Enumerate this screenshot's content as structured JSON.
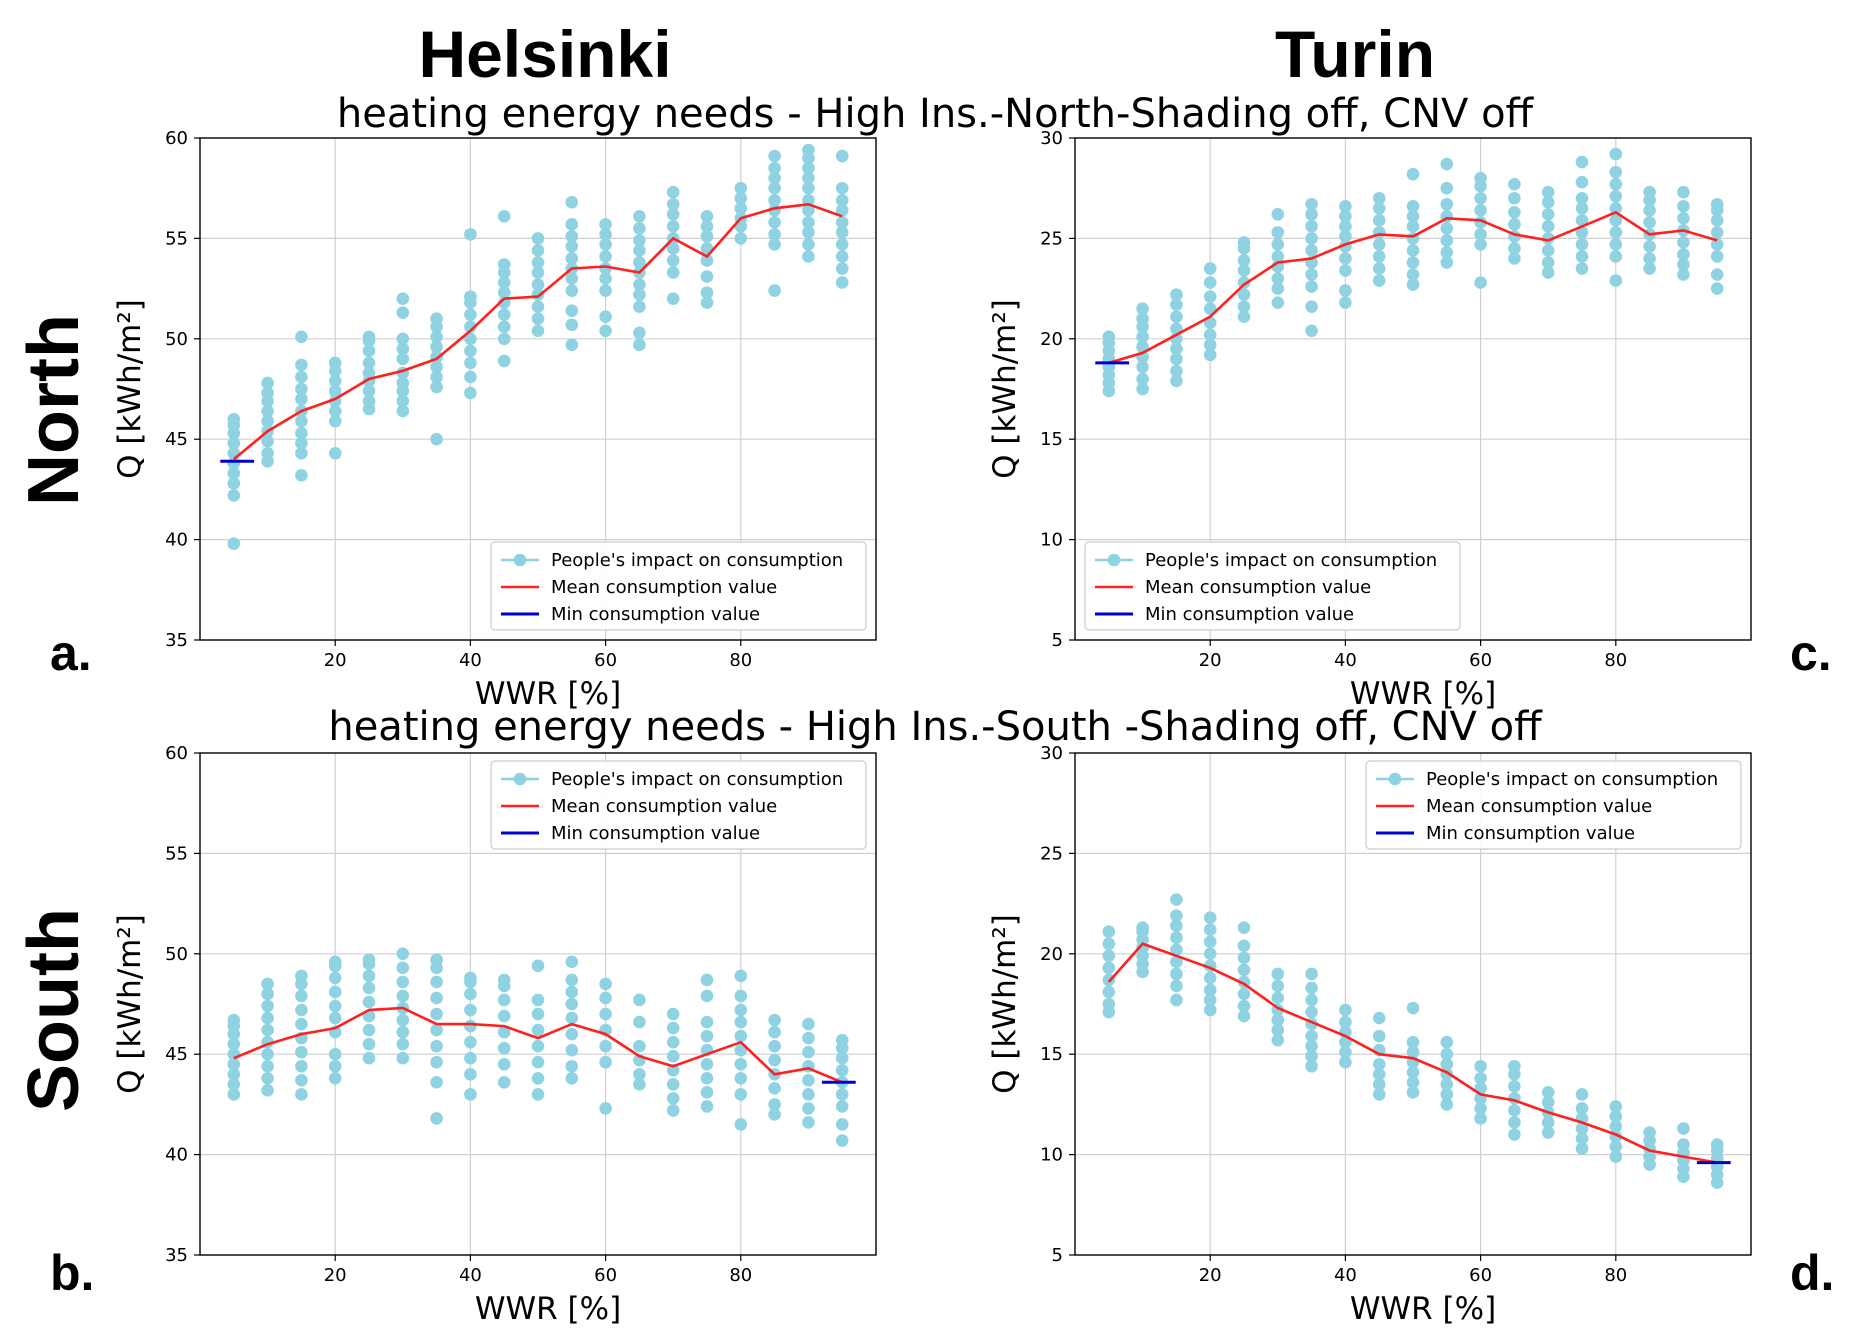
{
  "city_titles": [
    "Helsinki",
    "Turin"
  ],
  "row_labels": [
    "North",
    "South"
  ],
  "suptitles": [
    "heating energy needs - High Ins.-North-Shading off, CNV off",
    "heating energy needs - High Ins.-South -Shading off, CNV off"
  ],
  "panel_letters": [
    "a.",
    "b.",
    "c.",
    "d."
  ],
  "colors": {
    "scatter": "#8fd3e3",
    "mean": "#ff2020",
    "min": "#0000cc",
    "grid": "#d0d0d0"
  },
  "chart_data": [
    {
      "id": "a",
      "type": "scatter+line",
      "title": "Helsinki - North",
      "xlabel": "WWR [%]",
      "ylabel": "Q [kWh/m²]",
      "xlim": [
        0,
        100
      ],
      "ylim": [
        35,
        60
      ],
      "xticks": [
        20,
        40,
        60,
        80
      ],
      "yticks": [
        35,
        40,
        45,
        50,
        55,
        60
      ],
      "legend": {
        "position": "lower-right",
        "labels": [
          "People's impact on consumption",
          "Mean consumption value",
          "Min consumption value"
        ]
      },
      "x": [
        5,
        10,
        15,
        20,
        25,
        30,
        35,
        40,
        45,
        50,
        55,
        60,
        65,
        70,
        75,
        80,
        85,
        90,
        95
      ],
      "mean": [
        44.0,
        45.4,
        46.4,
        47.0,
        48.0,
        48.4,
        49.0,
        50.4,
        52.0,
        52.1,
        53.5,
        53.6,
        53.3,
        55.0,
        54.1,
        56.0,
        56.5,
        56.7,
        56.1
      ],
      "min": {
        "x": [
          3,
          8
        ],
        "y": 43.9
      },
      "scatter": [
        [
          39.8,
          42.2,
          42.8,
          43.3,
          43.8,
          44.3,
          44.8,
          45.3,
          45.7,
          46.0
        ],
        [
          43.9,
          44.3,
          44.9,
          45.4,
          45.9,
          46.4,
          46.9,
          47.3,
          47.8
        ],
        [
          43.2,
          44.3,
          44.8,
          45.3,
          45.9,
          46.4,
          47.0,
          47.5,
          48.1,
          48.7,
          50.1
        ],
        [
          44.3,
          45.9,
          46.4,
          46.9,
          47.4,
          47.9,
          48.4,
          48.8
        ],
        [
          46.5,
          46.9,
          47.4,
          47.9,
          48.3,
          48.8,
          49.4,
          49.9,
          50.1
        ],
        [
          46.4,
          46.9,
          47.4,
          47.8,
          48.3,
          49.0,
          49.5,
          50.0,
          51.3,
          52.0
        ],
        [
          45.0,
          47.6,
          48.1,
          48.6,
          49.1,
          49.6,
          50.1,
          50.6,
          51.0
        ],
        [
          47.3,
          48.1,
          48.8,
          49.4,
          50.0,
          50.6,
          51.2,
          51.8,
          52.1,
          55.2
        ],
        [
          48.9,
          50.0,
          50.6,
          51.2,
          51.8,
          52.3,
          52.8,
          53.3,
          53.7,
          56.1
        ],
        [
          50.4,
          51.0,
          51.6,
          52.2,
          52.7,
          53.3,
          53.8,
          54.4,
          55.0
        ],
        [
          49.7,
          50.7,
          51.4,
          52.4,
          53.0,
          53.5,
          54.0,
          54.6,
          55.1,
          55.7,
          56.8
        ],
        [
          50.4,
          51.1,
          52.4,
          53.0,
          53.5,
          54.1,
          54.7,
          55.2,
          55.7
        ],
        [
          49.7,
          50.3,
          51.6,
          52.2,
          52.7,
          53.3,
          53.8,
          54.4,
          54.9,
          55.5,
          56.1
        ],
        [
          52.0,
          53.3,
          53.9,
          54.5,
          55.0,
          55.6,
          56.2,
          56.7,
          57.3
        ],
        [
          51.8,
          52.3,
          53.1,
          53.9,
          54.5,
          55.1,
          55.6,
          56.1
        ],
        [
          55.0,
          55.6,
          56.0,
          56.5,
          57.0,
          57.5
        ],
        [
          52.4,
          54.7,
          55.2,
          55.8,
          56.4,
          56.9,
          57.5,
          58.0,
          58.5,
          59.1
        ],
        [
          54.1,
          54.7,
          55.3,
          55.8,
          56.4,
          56.9,
          57.5,
          58.0,
          58.5,
          59.0,
          59.4
        ],
        [
          52.8,
          53.5,
          54.1,
          54.7,
          55.3,
          55.8,
          56.4,
          56.9,
          57.5,
          59.1
        ]
      ]
    },
    {
      "id": "b",
      "type": "scatter+line",
      "title": "Helsinki - South",
      "xlabel": "WWR [%]",
      "ylabel": "Q [kWh/m²]",
      "xlim": [
        0,
        100
      ],
      "ylim": [
        35,
        60
      ],
      "xticks": [
        20,
        40,
        60,
        80
      ],
      "yticks": [
        35,
        40,
        45,
        50,
        55,
        60
      ],
      "legend": {
        "position": "upper-right",
        "labels": [
          "People's impact on consumption",
          "Mean consumption value",
          "Min consumption value"
        ]
      },
      "x": [
        5,
        10,
        15,
        20,
        25,
        30,
        35,
        40,
        45,
        50,
        55,
        60,
        65,
        70,
        75,
        80,
        85,
        90,
        95
      ],
      "mean": [
        44.8,
        45.5,
        46.0,
        46.3,
        47.2,
        47.3,
        46.5,
        46.5,
        46.4,
        45.8,
        46.5,
        46.0,
        44.9,
        44.4,
        45.0,
        45.6,
        44.0,
        44.3,
        43.6
      ],
      "min": {
        "x": [
          92,
          97
        ],
        "y": 43.6
      },
      "scatter": [
        [
          43.0,
          43.5,
          44.0,
          44.5,
          45.0,
          45.5,
          46.0,
          46.4,
          46.7
        ],
        [
          43.2,
          43.8,
          44.4,
          45.0,
          45.6,
          46.2,
          46.8,
          47.4,
          48.0,
          48.5
        ],
        [
          43.0,
          43.7,
          44.4,
          45.1,
          45.8,
          46.5,
          47.2,
          47.9,
          48.5,
          48.9
        ],
        [
          43.8,
          44.4,
          45.0,
          46.1,
          46.8,
          47.4,
          48.1,
          48.8,
          49.4,
          49.6
        ],
        [
          44.8,
          45.5,
          46.2,
          46.9,
          47.6,
          48.3,
          48.9,
          49.5,
          49.7
        ],
        [
          44.8,
          45.5,
          46.1,
          46.7,
          47.3,
          47.9,
          48.6,
          49.3,
          50.0
        ],
        [
          41.8,
          43.6,
          44.6,
          45.4,
          46.2,
          47.0,
          47.8,
          48.6,
          49.3,
          49.7
        ],
        [
          43.0,
          44.0,
          44.8,
          45.6,
          46.4,
          47.2,
          48.0,
          48.6,
          48.8
        ],
        [
          43.6,
          44.5,
          45.3,
          46.1,
          46.9,
          47.7,
          48.4,
          48.7
        ],
        [
          43.0,
          43.8,
          44.6,
          45.4,
          46.2,
          47.0,
          47.7,
          49.4
        ],
        [
          43.8,
          44.4,
          45.2,
          46.0,
          46.8,
          47.5,
          48.1,
          48.7,
          49.6
        ],
        [
          42.3,
          44.6,
          45.4,
          46.2,
          47.0,
          47.8,
          48.5
        ],
        [
          43.5,
          44.0,
          44.7,
          45.4,
          46.6,
          47.7
        ],
        [
          42.2,
          42.8,
          43.5,
          44.2,
          44.9,
          45.6,
          46.3,
          47.0
        ],
        [
          42.4,
          43.1,
          43.8,
          44.5,
          45.2,
          45.9,
          46.6,
          47.9,
          48.7
        ],
        [
          41.5,
          43.0,
          43.8,
          44.5,
          45.2,
          45.9,
          46.6,
          47.2,
          47.9,
          48.9
        ],
        [
          42.0,
          42.5,
          43.3,
          44.0,
          44.7,
          45.4,
          46.1,
          46.7
        ],
        [
          41.6,
          42.3,
          43.0,
          43.7,
          44.4,
          45.1,
          45.8,
          46.5
        ],
        [
          40.7,
          41.5,
          42.4,
          43.0,
          43.6,
          44.2,
          44.8,
          45.3,
          45.7
        ]
      ]
    },
    {
      "id": "c",
      "type": "scatter+line",
      "title": "Turin - North",
      "xlabel": "WWR [%]",
      "ylabel": "Q [kWh/m²]",
      "xlim": [
        0,
        100
      ],
      "ylim": [
        5,
        30
      ],
      "xticks": [
        20,
        40,
        60,
        80
      ],
      "yticks": [
        5,
        10,
        15,
        20,
        25,
        30
      ],
      "legend": {
        "position": "lower-left",
        "labels": [
          "People's impact on consumption",
          "Mean consumption value",
          "Min consumption value"
        ]
      },
      "x": [
        5,
        10,
        15,
        20,
        25,
        30,
        35,
        40,
        45,
        50,
        55,
        60,
        65,
        70,
        75,
        80,
        85,
        90,
        95
      ],
      "mean": [
        18.8,
        19.3,
        20.2,
        21.1,
        22.7,
        23.8,
        24.0,
        24.7,
        25.2,
        25.1,
        26.0,
        25.9,
        25.2,
        24.9,
        25.6,
        26.3,
        25.2,
        25.4,
        24.9
      ],
      "min": {
        "x": [
          3,
          8
        ],
        "y": 18.8
      },
      "scatter": [
        [
          17.4,
          17.8,
          18.2,
          18.6,
          19.0,
          19.4,
          19.8,
          20.1
        ],
        [
          17.5,
          18.0,
          18.6,
          19.1,
          19.6,
          20.1,
          20.6,
          21.0,
          21.5
        ],
        [
          17.9,
          18.4,
          19.0,
          19.5,
          20.0,
          20.5,
          21.1,
          21.7,
          22.2
        ],
        [
          19.2,
          19.7,
          20.2,
          20.8,
          21.5,
          22.1,
          22.8,
          23.5
        ],
        [
          21.1,
          21.6,
          22.2,
          22.8,
          23.4,
          23.9,
          24.5,
          24.8
        ],
        [
          21.8,
          22.5,
          23.0,
          23.6,
          24.1,
          24.7,
          25.3,
          26.2
        ],
        [
          20.4,
          21.6,
          22.6,
          23.2,
          23.8,
          24.4,
          25.0,
          25.6,
          26.2,
          26.7
        ],
        [
          21.8,
          22.4,
          23.4,
          24.0,
          24.6,
          25.1,
          25.6,
          26.1,
          26.6
        ],
        [
          22.9,
          23.5,
          24.1,
          24.7,
          25.3,
          25.9,
          26.5,
          27.0
        ],
        [
          22.7,
          23.2,
          23.8,
          24.4,
          25.0,
          25.6,
          26.1,
          26.6,
          28.2
        ],
        [
          23.8,
          24.3,
          24.9,
          25.5,
          26.1,
          26.7,
          27.5,
          28.7
        ],
        [
          22.8,
          24.7,
          25.2,
          25.8,
          26.4,
          27.0,
          27.6,
          28.0
        ],
        [
          24.0,
          24.5,
          25.1,
          25.7,
          26.3,
          27.0,
          27.7
        ],
        [
          23.3,
          23.8,
          24.4,
          25.0,
          25.6,
          26.2,
          26.8,
          27.3
        ],
        [
          23.5,
          24.1,
          24.7,
          25.3,
          25.9,
          26.5,
          27.0,
          27.8,
          28.8
        ],
        [
          22.9,
          24.1,
          24.7,
          25.3,
          25.9,
          26.5,
          27.1,
          27.7,
          28.3,
          29.2
        ],
        [
          23.5,
          24.0,
          24.6,
          25.2,
          25.8,
          26.4,
          26.9,
          27.3
        ],
        [
          23.2,
          23.7,
          24.2,
          24.8,
          25.4,
          26.0,
          26.6,
          27.3
        ],
        [
          22.5,
          23.2,
          24.1,
          24.7,
          25.3,
          25.9,
          26.4,
          26.7
        ]
      ]
    },
    {
      "id": "d",
      "type": "scatter+line",
      "title": "Turin - South",
      "xlabel": "WWR [%]",
      "ylabel": "Q [kWh/m²]",
      "xlim": [
        0,
        100
      ],
      "ylim": [
        5,
        30
      ],
      "xticks": [
        20,
        40,
        60,
        80
      ],
      "yticks": [
        5,
        10,
        15,
        20,
        25,
        30
      ],
      "legend": {
        "position": "upper-right",
        "labels": [
          "People's impact on consumption",
          "Mean consumption value",
          "Min consumption value"
        ]
      },
      "x": [
        5,
        10,
        15,
        20,
        25,
        30,
        35,
        40,
        45,
        50,
        55,
        60,
        65,
        70,
        75,
        80,
        85,
        90,
        95
      ],
      "mean": [
        18.6,
        20.5,
        19.9,
        19.3,
        18.5,
        17.3,
        16.6,
        15.9,
        15.0,
        14.8,
        14.1,
        13.0,
        12.7,
        12.1,
        11.6,
        11.0,
        10.2,
        9.9,
        9.6
      ],
      "min": {
        "x": [
          92,
          97
        ],
        "y": 9.6
      },
      "scatter": [
        [
          17.1,
          17.5,
          18.1,
          18.7,
          19.3,
          19.9,
          20.5,
          21.1
        ],
        [
          19.1,
          19.5,
          19.9,
          20.3,
          20.7,
          21.1,
          21.3
        ],
        [
          17.7,
          18.4,
          19.0,
          19.6,
          20.2,
          20.8,
          21.4,
          21.9,
          22.7
        ],
        [
          17.2,
          17.7,
          18.2,
          18.8,
          19.4,
          20.0,
          20.6,
          21.2,
          21.8
        ],
        [
          16.9,
          17.4,
          18.0,
          18.6,
          19.2,
          19.8,
          20.4,
          21.3
        ],
        [
          15.7,
          16.2,
          16.7,
          17.2,
          17.8,
          18.4,
          19.0
        ],
        [
          14.4,
          14.9,
          15.4,
          15.9,
          16.5,
          17.1,
          17.7,
          18.3,
          19.0
        ],
        [
          14.6,
          15.1,
          15.6,
          16.1,
          16.6,
          17.2
        ],
        [
          13.0,
          13.5,
          14.0,
          14.5,
          15.2,
          15.9,
          16.8
        ],
        [
          13.1,
          13.6,
          14.1,
          14.6,
          15.1,
          15.6,
          17.3
        ],
        [
          12.5,
          13.0,
          13.5,
          14.0,
          14.5,
          15.0,
          15.6
        ],
        [
          11.8,
          12.3,
          12.8,
          13.3,
          13.8,
          14.4
        ],
        [
          11.0,
          11.6,
          12.2,
          12.8,
          13.4,
          14.0,
          14.4
        ],
        [
          11.1,
          11.6,
          12.1,
          12.6,
          13.1
        ],
        [
          10.3,
          10.8,
          11.3,
          11.8,
          12.3,
          13.0
        ],
        [
          9.9,
          10.4,
          10.9,
          11.4,
          11.9,
          12.4
        ],
        [
          9.5,
          9.9,
          10.3,
          10.7,
          11.1
        ],
        [
          8.9,
          9.3,
          9.7,
          10.1,
          10.5,
          11.3
        ],
        [
          8.6,
          9.0,
          9.4,
          9.8,
          10.2,
          10.5
        ]
      ]
    }
  ]
}
